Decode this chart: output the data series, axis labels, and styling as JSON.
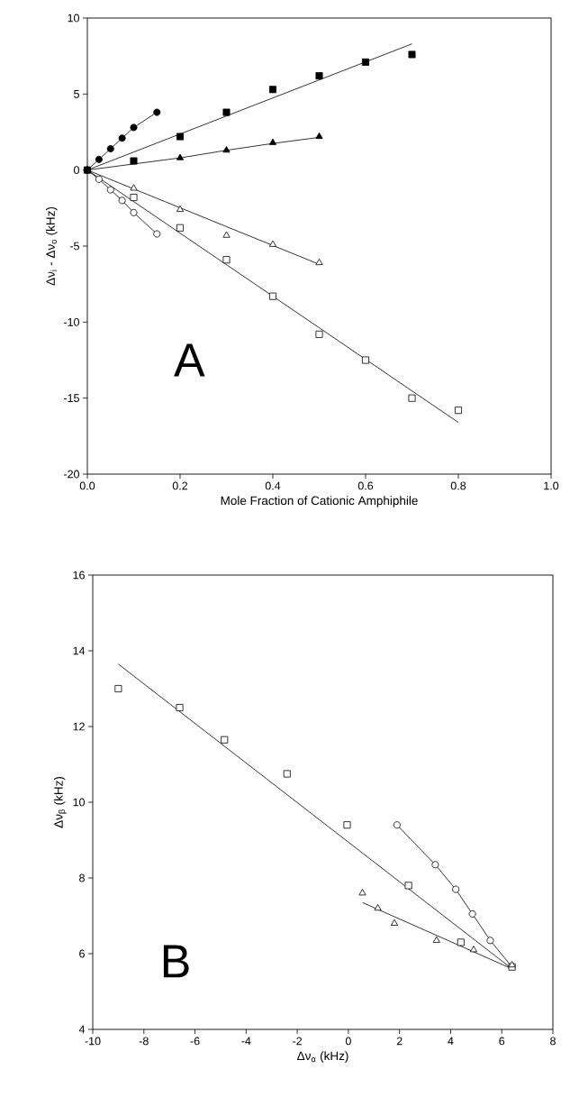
{
  "chart_data": [
    {
      "type": "scatter",
      "xlabel": "Mole Fraction of Cationic Amphiphile",
      "ylabel": "Δν$_{i}$ - Δν$_{o}$ (kHz)",
      "annotations": [
        "A"
      ],
      "xlim": [
        0,
        1
      ],
      "xticks": [
        {
          "value": 0,
          "label": "0.0"
        },
        {
          "value": 0.2,
          "label": "0.2"
        },
        {
          "value": 0.4,
          "label": "0.4"
        },
        {
          "value": 0.6,
          "label": "0.6"
        },
        {
          "value": 0.8,
          "label": "0.8"
        },
        {
          "value": 1,
          "label": "1.0"
        }
      ],
      "ylim": [
        -20,
        10
      ],
      "yticks": [
        -20,
        -15,
        -10,
        -5,
        0,
        5,
        10
      ],
      "series": [
        {
          "type": "line",
          "marker": "none",
          "color": "#000000",
          "x": [
            0,
            0.025,
            0.05,
            0.075,
            0.1,
            0.15
          ],
          "values": [
            0,
            0.7,
            1.4,
            2.1,
            2.8,
            3.8
          ]
        },
        {
          "type": "line",
          "marker": "none",
          "color": "#000000",
          "x": [
            0,
            0.7
          ],
          "values": [
            0,
            8.3
          ]
        },
        {
          "type": "line",
          "marker": "none",
          "color": "#000000",
          "x": [
            0,
            0.2,
            0.3,
            0.4,
            0.5
          ],
          "values": [
            0,
            0.8,
            1.3,
            1.75,
            2.15
          ]
        },
        {
          "type": "line",
          "marker": "none",
          "color": "#000000",
          "x": [
            0,
            0.025,
            0.05,
            0.075,
            0.1,
            0.15
          ],
          "values": [
            0,
            -0.6,
            -1.3,
            -2.0,
            -2.8,
            -4.2
          ]
        },
        {
          "type": "line",
          "marker": "none",
          "color": "#000000",
          "x": [
            0,
            0.5
          ],
          "values": [
            0,
            -6.2
          ]
        },
        {
          "type": "line",
          "marker": "none",
          "color": "#000000",
          "x": [
            0,
            0.8
          ],
          "values": [
            0,
            -16.6
          ]
        },
        {
          "marker": "circle",
          "color": "#000000",
          "x": [
            0,
            0.025,
            0.05,
            0.075,
            0.1,
            0.15
          ],
          "values": [
            0,
            0.7,
            1.4,
            2.1,
            2.8,
            3.8
          ]
        },
        {
          "marker": "square",
          "color": "#000000",
          "x": [
            0,
            0.1,
            0.2,
            0.3,
            0.4,
            0.5,
            0.6,
            0.7
          ],
          "values": [
            0,
            0.6,
            2.2,
            3.8,
            5.3,
            6.2,
            7.1,
            7.6
          ]
        },
        {
          "marker": "triangle",
          "color": "#000000",
          "x": [
            0,
            0.2,
            0.3,
            0.4,
            0.5
          ],
          "values": [
            0,
            0.8,
            1.3,
            1.8,
            2.2
          ]
        },
        {
          "marker": "circle",
          "color": "#ffffff",
          "x": [
            0.025,
            0.05,
            0.075,
            0.1,
            0.15
          ],
          "values": [
            -0.6,
            -1.3,
            -2.0,
            -2.8,
            -4.2
          ]
        },
        {
          "marker": "triangle",
          "color": "#ffffff",
          "x": [
            0.1,
            0.2,
            0.3,
            0.4,
            0.5
          ],
          "values": [
            -1.2,
            -2.6,
            -4.3,
            -4.9,
            -6.1
          ]
        },
        {
          "marker": "square",
          "color": "#ffffff",
          "x": [
            0.1,
            0.2,
            0.3,
            0.4,
            0.5,
            0.6,
            0.7,
            0.8
          ],
          "values": [
            -1.8,
            -3.8,
            -5.9,
            -8.3,
            -10.8,
            -12.5,
            -15.0,
            -15.8
          ]
        }
      ]
    },
    {
      "type": "scatter",
      "xlabel": "Δν$_{α}$ (kHz)",
      "ylabel": "Δν$_{β}$ (kHz)",
      "annotations": [
        "B"
      ],
      "xlim": [
        -10,
        8
      ],
      "xticks": [
        -10,
        -8,
        -6,
        -4,
        -2,
        0,
        2,
        4,
        6,
        8
      ],
      "ylim": [
        4,
        16
      ],
      "yticks": [
        4,
        6,
        8,
        10,
        12,
        14,
        16
      ],
      "series": [
        {
          "type": "line",
          "marker": "none",
          "color": "#000000",
          "x": [
            -9,
            6.4
          ],
          "values": [
            13.65,
            5.6
          ]
        },
        {
          "type": "line",
          "marker": "none",
          "color": "#000000",
          "x": [
            1.9,
            3.4,
            4.2,
            4.85,
            5.55,
            6.4
          ],
          "values": [
            9.4,
            8.35,
            7.7,
            7.05,
            6.35,
            5.65
          ]
        },
        {
          "type": "line",
          "marker": "none",
          "color": "#000000",
          "x": [
            0.55,
            6.4
          ],
          "values": [
            7.35,
            5.6
          ]
        },
        {
          "marker": "square",
          "color": "#ffffff",
          "x": [
            -9,
            -6.6,
            -4.85,
            -2.4,
            -0.05,
            2.35,
            4.4,
            6.4
          ],
          "values": [
            13.0,
            12.5,
            11.65,
            10.75,
            9.4,
            7.8,
            6.3,
            5.65
          ]
        },
        {
          "marker": "circle",
          "color": "#ffffff",
          "x": [
            1.9,
            3.4,
            4.2,
            4.85,
            5.55
          ],
          "values": [
            9.4,
            8.35,
            7.7,
            7.05,
            6.35
          ]
        },
        {
          "marker": "triangle",
          "color": "#ffffff",
          "x": [
            0.55,
            1.15,
            1.8,
            3.45,
            4.9,
            6.4
          ],
          "values": [
            7.6,
            7.2,
            6.8,
            6.35,
            6.1,
            5.7
          ]
        }
      ]
    }
  ]
}
